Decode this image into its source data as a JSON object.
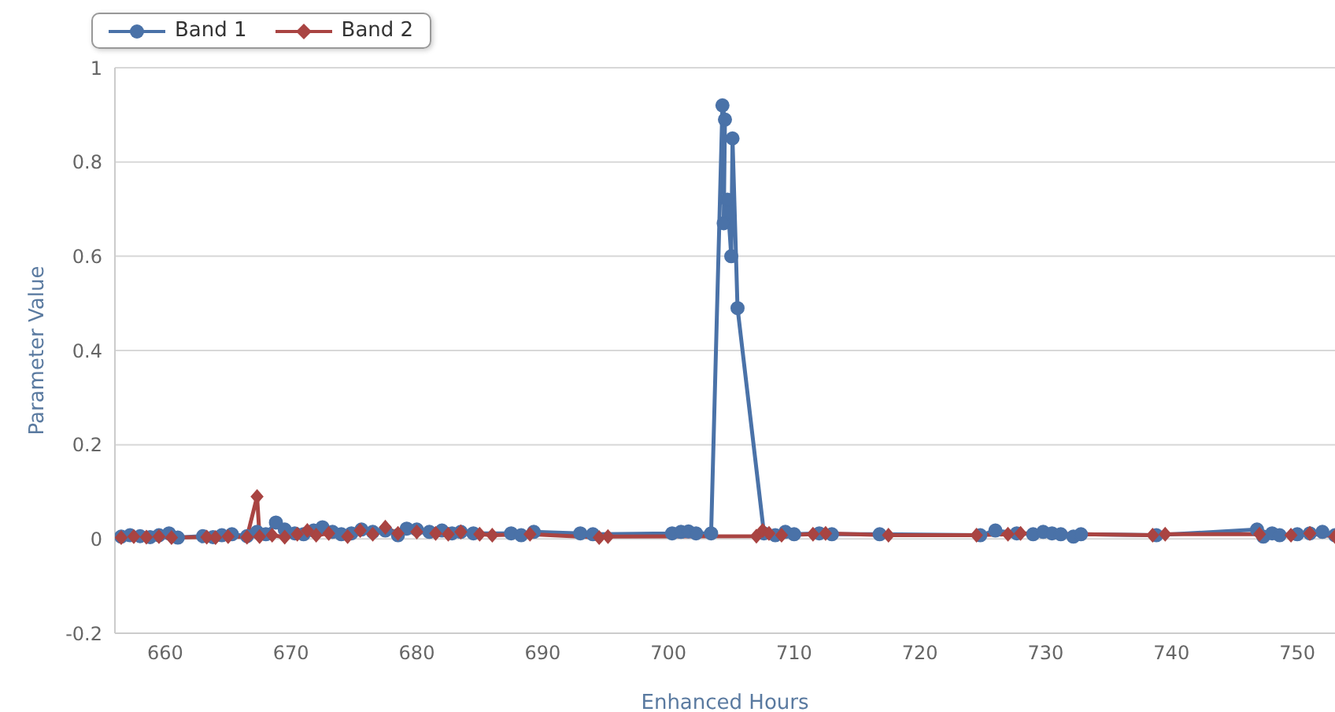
{
  "chart_data": {
    "type": "line",
    "xlabel": "Enhanced Hours",
    "ylabel": "Parameter Value",
    "xlim": [
      656,
      753
    ],
    "xticks": [
      660,
      670,
      680,
      690,
      700,
      710,
      720,
      730,
      740,
      750
    ],
    "ylim": [
      -0.2,
      1
    ],
    "yticks": [
      -0.2,
      0,
      0.2,
      0.4,
      0.6,
      0.8,
      1
    ],
    "grid": "y",
    "legend": "top left",
    "line_style": "solid",
    "series": [
      {
        "name": "Band 1",
        "color": "#4a72a8",
        "marker": "circle",
        "x": [
          656.5,
          657.2,
          658,
          658.8,
          659.5,
          660.3,
          661,
          663,
          663.8,
          664.5,
          665.3,
          666.5,
          667.3,
          668,
          668.8,
          669.5,
          670.3,
          671,
          671.8,
          672.5,
          673.3,
          674,
          674.8,
          675.6,
          676.5,
          677.5,
          678.5,
          679.2,
          680,
          681,
          682,
          682.8,
          683.5,
          684.5,
          687.5,
          688.3,
          689.3,
          693,
          694,
          700.3,
          701,
          701.6,
          702.2,
          703.4,
          704.3,
          704.5,
          704.4,
          704.7,
          705,
          705.1,
          705.5,
          707.6,
          708.5,
          709.3,
          710,
          712,
          713,
          716.8,
          724.8,
          726,
          727.7,
          729,
          729.8,
          730.5,
          731.2,
          732.2,
          732.8,
          738.8,
          746.8,
          747.3,
          748,
          748.6,
          750,
          751,
          752,
          753
        ],
        "values": [
          0.005,
          0.008,
          0.006,
          0.004,
          0.008,
          0.012,
          0.003,
          0.006,
          0.004,
          0.008,
          0.01,
          0.006,
          0.015,
          0.01,
          0.035,
          0.02,
          0.012,
          0.01,
          0.018,
          0.025,
          0.015,
          0.01,
          0.012,
          0.02,
          0.015,
          0.018,
          0.008,
          0.022,
          0.02,
          0.015,
          0.018,
          0.012,
          0.015,
          0.012,
          0.012,
          0.008,
          0.015,
          0.012,
          0.01,
          0.012,
          0.015,
          0.016,
          0.012,
          0.012,
          0.92,
          0.89,
          0.67,
          0.72,
          0.6,
          0.85,
          0.49,
          0.012,
          0.008,
          0.015,
          0.01,
          0.012,
          0.01,
          0.01,
          0.008,
          0.018,
          0.012,
          0.01,
          0.015,
          0.012,
          0.01,
          0.005,
          0.01,
          0.008,
          0.02,
          0.005,
          0.012,
          0.008,
          0.01,
          0.012,
          0.015,
          0.008
        ]
      },
      {
        "name": "Band 2",
        "color": "#a94442",
        "marker": "diamond",
        "x": [
          656.5,
          657.5,
          658.5,
          659.5,
          660.5,
          663.3,
          664,
          665,
          666.5,
          667.3,
          667.5,
          668.5,
          669.5,
          670.5,
          671.3,
          672,
          673,
          674.5,
          675.5,
          676.5,
          677.5,
          678.5,
          680,
          681.5,
          682.5,
          683.5,
          685,
          686,
          689,
          694.5,
          695.2,
          707,
          707.5,
          708,
          709,
          711.5,
          712.5,
          717.5,
          724.5,
          727,
          728,
          738.5,
          739.5,
          747,
          749.5,
          751,
          753
        ],
        "values": [
          0.003,
          0.005,
          0.004,
          0.005,
          0.003,
          0.004,
          0.003,
          0.005,
          0.004,
          0.09,
          0.005,
          0.008,
          0.004,
          0.01,
          0.018,
          0.008,
          0.012,
          0.005,
          0.018,
          0.01,
          0.025,
          0.012,
          0.015,
          0.012,
          0.01,
          0.015,
          0.01,
          0.008,
          0.01,
          0.003,
          0.005,
          0.006,
          0.018,
          0.012,
          0.008,
          0.01,
          0.012,
          0.008,
          0.008,
          0.01,
          0.012,
          0.008,
          0.01,
          0.01,
          0.008,
          0.012,
          0.005
        ]
      }
    ]
  }
}
